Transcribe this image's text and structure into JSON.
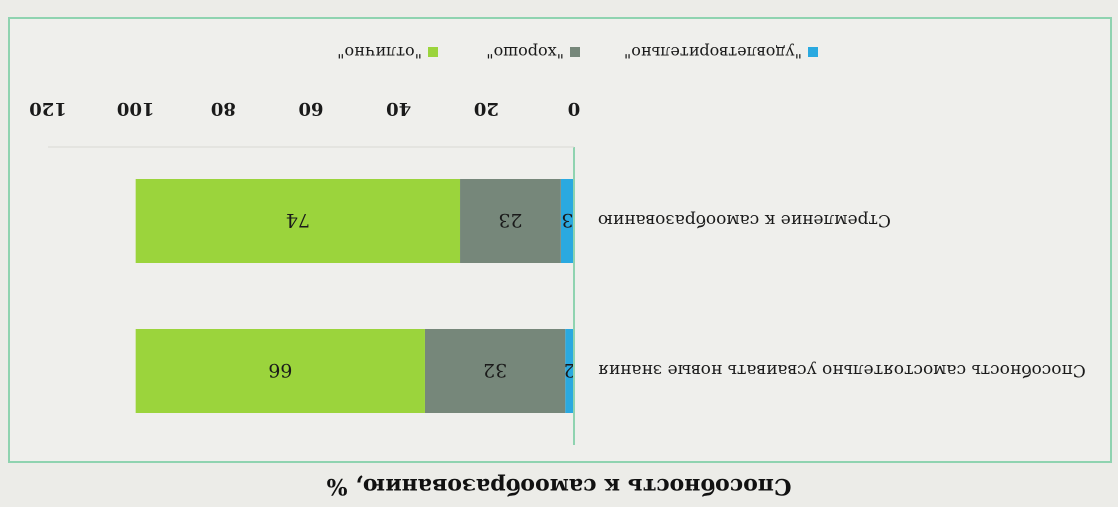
{
  "chart_data": {
    "type": "bar",
    "orientation": "horizontal",
    "stacked": true,
    "title": "Способность к самообразованию, %",
    "categories": [
      "Способность самостоятельно усваивать новые знания",
      "Стремление к самообразованию"
    ],
    "series": [
      {
        "name": "\"удовлетворительно\"",
        "color": "#2aa9e0",
        "values": [
          2,
          3
        ]
      },
      {
        "name": "\"хорошо\"",
        "color": "#76877a",
        "values": [
          32,
          23
        ]
      },
      {
        "name": "\"отлично\"",
        "color": "#9bd43c",
        "values": [
          66,
          74
        ]
      }
    ],
    "xlim": [
      0,
      120
    ],
    "xticks": [
      0,
      20,
      40,
      60,
      80,
      100,
      120
    ],
    "legend_position": "bottom",
    "grid": false,
    "colors": {
      "axis": "#8fd3b0",
      "frame": "#8fd3b0",
      "background": "#efefec"
    }
  }
}
